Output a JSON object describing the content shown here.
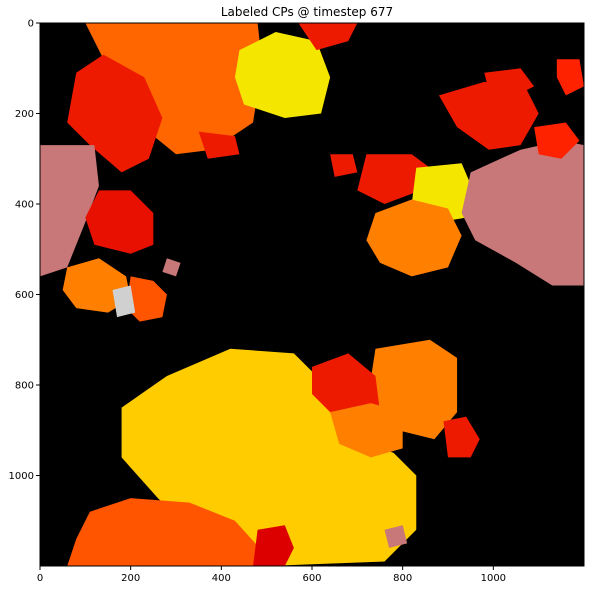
{
  "chart_data": {
    "type": "heatmap",
    "title": "Labeled CPs @ timestep 677",
    "xlabel": "",
    "ylabel": "",
    "xlim": [
      0,
      1200
    ],
    "ylim": [
      0,
      1200
    ],
    "y_inverted": true,
    "x_ticks": [
      "0",
      "200",
      "400",
      "600",
      "800",
      "1000"
    ],
    "y_ticks": [
      "0",
      "200",
      "400",
      "600",
      "800",
      "1000"
    ],
    "background_color": "#000000",
    "grid": false,
    "legend": "none",
    "regions": [
      {
        "color": "#ff6600",
        "points": [
          [
            100,
            0
          ],
          [
            480,
            0
          ],
          [
            490,
            90
          ],
          [
            470,
            220
          ],
          [
            380,
            280
          ],
          [
            300,
            290
          ],
          [
            190,
            200
          ],
          [
            150,
            100
          ]
        ]
      },
      {
        "color": "#ee1a00",
        "points": [
          [
            80,
            110
          ],
          [
            140,
            70
          ],
          [
            230,
            120
          ],
          [
            270,
            210
          ],
          [
            240,
            300
          ],
          [
            180,
            330
          ],
          [
            110,
            270
          ],
          [
            60,
            220
          ]
        ]
      },
      {
        "color": "#f5e600",
        "points": [
          [
            440,
            60
          ],
          [
            520,
            20
          ],
          [
            610,
            40
          ],
          [
            640,
            120
          ],
          [
            620,
            200
          ],
          [
            540,
            210
          ],
          [
            450,
            180
          ],
          [
            430,
            120
          ]
        ]
      },
      {
        "color": "#ee1a00",
        "points": [
          [
            570,
            0
          ],
          [
            700,
            0
          ],
          [
            680,
            40
          ],
          [
            610,
            60
          ]
        ]
      },
      {
        "color": "#c87878",
        "points": [
          [
            0,
            270
          ],
          [
            120,
            270
          ],
          [
            130,
            360
          ],
          [
            100,
            440
          ],
          [
            60,
            540
          ],
          [
            0,
            560
          ]
        ]
      },
      {
        "color": "#e81000",
        "points": [
          [
            130,
            370
          ],
          [
            200,
            370
          ],
          [
            250,
            420
          ],
          [
            250,
            490
          ],
          [
            200,
            510
          ],
          [
            120,
            490
          ],
          [
            100,
            430
          ]
        ]
      },
      {
        "color": "#ff7f00",
        "points": [
          [
            60,
            540
          ],
          [
            130,
            520
          ],
          [
            190,
            560
          ],
          [
            200,
            610
          ],
          [
            150,
            640
          ],
          [
            80,
            630
          ],
          [
            50,
            590
          ]
        ]
      },
      {
        "color": "#ff5500",
        "points": [
          [
            200,
            560
          ],
          [
            250,
            570
          ],
          [
            280,
            600
          ],
          [
            270,
            650
          ],
          [
            220,
            660
          ],
          [
            190,
            630
          ]
        ]
      },
      {
        "color": "#d0d0d0",
        "points": [
          [
            160,
            590
          ],
          [
            200,
            580
          ],
          [
            210,
            640
          ],
          [
            170,
            650
          ]
        ]
      },
      {
        "color": "#c87878",
        "points": [
          [
            280,
            520
          ],
          [
            310,
            530
          ],
          [
            300,
            560
          ],
          [
            270,
            550
          ]
        ]
      },
      {
        "color": "#ee1a00",
        "points": [
          [
            720,
            290
          ],
          [
            820,
            290
          ],
          [
            860,
            320
          ],
          [
            840,
            370
          ],
          [
            760,
            400
          ],
          [
            700,
            370
          ]
        ]
      },
      {
        "color": "#f5e600",
        "points": [
          [
            830,
            320
          ],
          [
            930,
            310
          ],
          [
            960,
            380
          ],
          [
            940,
            430
          ],
          [
            880,
            440
          ],
          [
            820,
            400
          ]
        ]
      },
      {
        "color": "#ff7f00",
        "points": [
          [
            740,
            420
          ],
          [
            820,
            390
          ],
          [
            900,
            410
          ],
          [
            930,
            470
          ],
          [
            900,
            540
          ],
          [
            820,
            560
          ],
          [
            750,
            530
          ],
          [
            720,
            480
          ]
        ]
      },
      {
        "color": "#c87878",
        "points": [
          [
            950,
            330
          ],
          [
            1060,
            280
          ],
          [
            1150,
            260
          ],
          [
            1200,
            270
          ],
          [
            1200,
            580
          ],
          [
            1130,
            580
          ],
          [
            1050,
            530
          ],
          [
            960,
            480
          ],
          [
            930,
            420
          ]
        ]
      },
      {
        "color": "#ee1a00",
        "points": [
          [
            880,
            160
          ],
          [
            980,
            130
          ],
          [
            1070,
            140
          ],
          [
            1100,
            200
          ],
          [
            1060,
            270
          ],
          [
            990,
            280
          ],
          [
            920,
            230
          ]
        ]
      },
      {
        "color": "#ee1a00",
        "points": [
          [
            980,
            110
          ],
          [
            1060,
            100
          ],
          [
            1090,
            140
          ],
          [
            1050,
            160
          ],
          [
            990,
            150
          ]
        ]
      },
      {
        "color": "#ff2200",
        "points": [
          [
            1090,
            230
          ],
          [
            1160,
            220
          ],
          [
            1190,
            260
          ],
          [
            1150,
            300
          ],
          [
            1100,
            290
          ]
        ]
      },
      {
        "color": "#ff2200",
        "points": [
          [
            1140,
            80
          ],
          [
            1190,
            80
          ],
          [
            1200,
            140
          ],
          [
            1160,
            160
          ],
          [
            1140,
            120
          ]
        ]
      },
      {
        "color": "#ffcc00",
        "points": [
          [
            180,
            850
          ],
          [
            280,
            780
          ],
          [
            420,
            720
          ],
          [
            560,
            730
          ],
          [
            660,
            830
          ],
          [
            700,
            920
          ],
          [
            780,
            950
          ],
          [
            830,
            1000
          ],
          [
            830,
            1120
          ],
          [
            760,
            1190
          ],
          [
            500,
            1200
          ],
          [
            360,
            1150
          ],
          [
            260,
            1050
          ],
          [
            180,
            960
          ]
        ]
      },
      {
        "color": "#ff7f00",
        "points": [
          [
            740,
            720
          ],
          [
            860,
            700
          ],
          [
            920,
            740
          ],
          [
            920,
            860
          ],
          [
            870,
            920
          ],
          [
            790,
            900
          ],
          [
            720,
            850
          ]
        ]
      },
      {
        "color": "#ee1a00",
        "points": [
          [
            600,
            760
          ],
          [
            680,
            730
          ],
          [
            740,
            780
          ],
          [
            750,
            860
          ],
          [
            700,
            880
          ],
          [
            640,
            860
          ],
          [
            600,
            820
          ]
        ]
      },
      {
        "color": "#ff7f00",
        "points": [
          [
            640,
            860
          ],
          [
            730,
            840
          ],
          [
            800,
            860
          ],
          [
            800,
            940
          ],
          [
            730,
            960
          ],
          [
            660,
            930
          ]
        ]
      },
      {
        "color": "#ee1a00",
        "points": [
          [
            890,
            880
          ],
          [
            940,
            870
          ],
          [
            970,
            920
          ],
          [
            950,
            960
          ],
          [
            900,
            960
          ]
        ]
      },
      {
        "color": "#ff5500",
        "points": [
          [
            110,
            1080
          ],
          [
            200,
            1050
          ],
          [
            330,
            1060
          ],
          [
            430,
            1100
          ],
          [
            520,
            1200
          ],
          [
            60,
            1200
          ],
          [
            80,
            1140
          ]
        ]
      },
      {
        "color": "#dd0000",
        "points": [
          [
            480,
            1120
          ],
          [
            540,
            1110
          ],
          [
            560,
            1160
          ],
          [
            540,
            1200
          ],
          [
            470,
            1200
          ]
        ]
      },
      {
        "color": "#c87878",
        "points": [
          [
            760,
            1120
          ],
          [
            800,
            1110
          ],
          [
            810,
            1150
          ],
          [
            770,
            1160
          ]
        ]
      },
      {
        "color": "#ee1a00",
        "points": [
          [
            640,
            290
          ],
          [
            690,
            290
          ],
          [
            700,
            330
          ],
          [
            650,
            340
          ]
        ]
      },
      {
        "color": "#ee1a00",
        "points": [
          [
            350,
            240
          ],
          [
            430,
            250
          ],
          [
            440,
            290
          ],
          [
            370,
            300
          ]
        ]
      }
    ]
  }
}
